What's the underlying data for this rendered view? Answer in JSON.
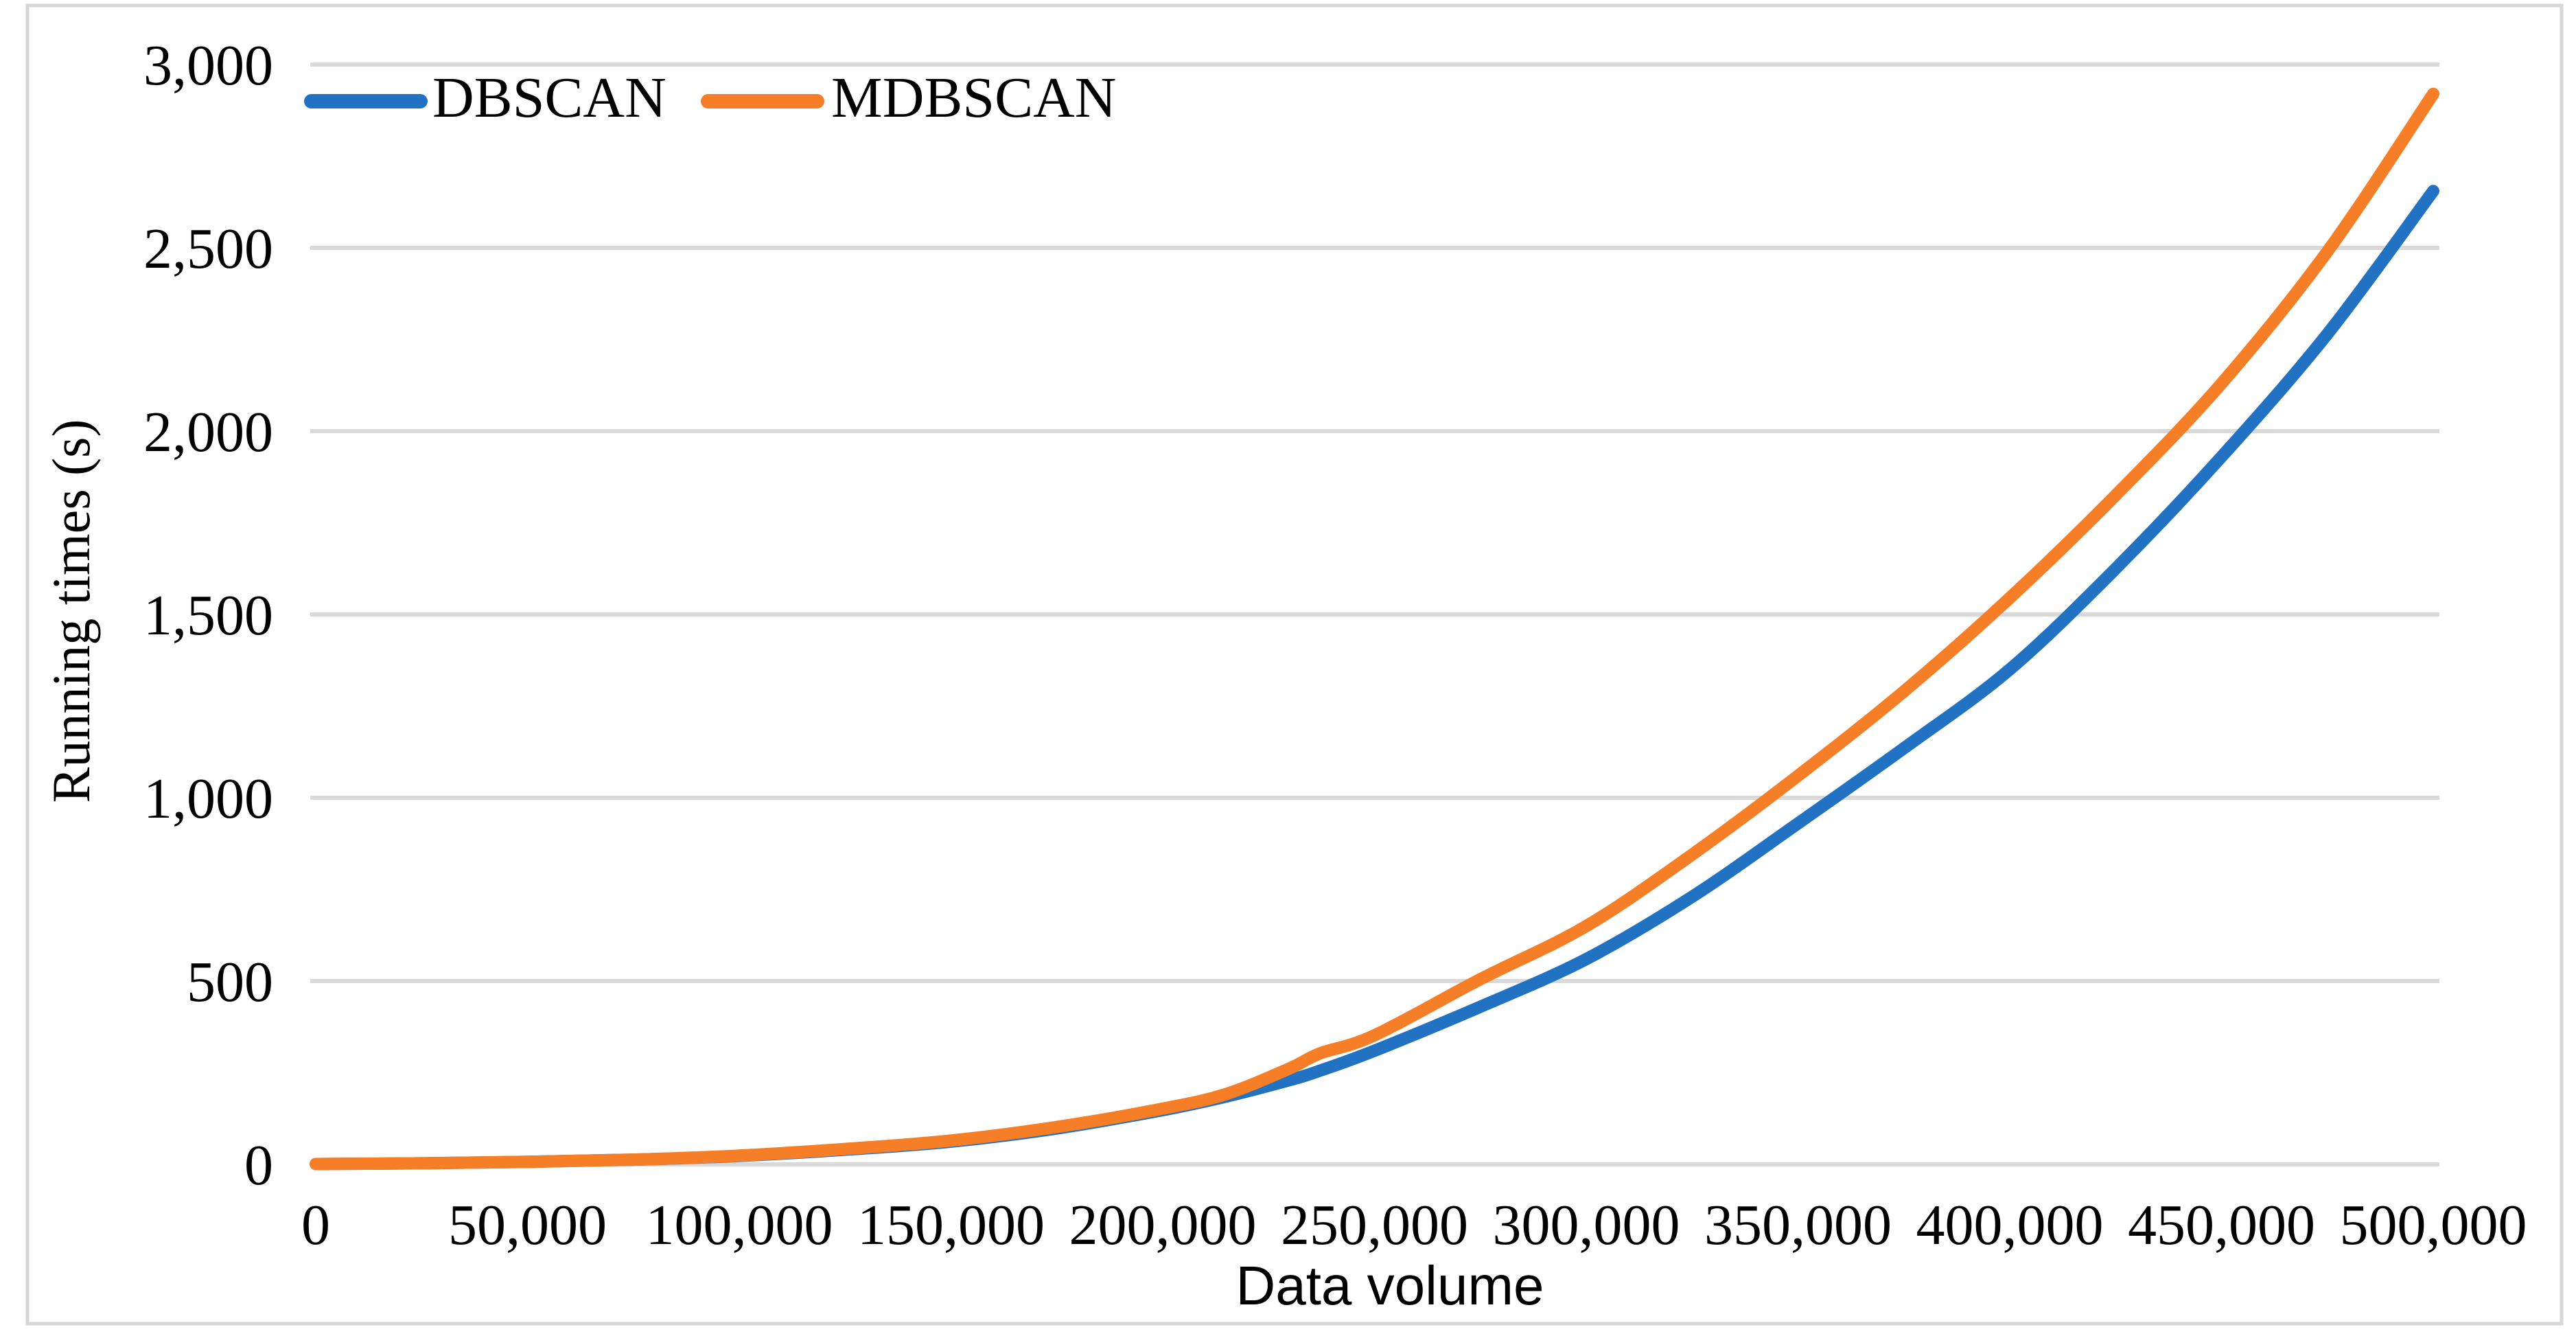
{
  "figure": {
    "background_color": "#FFFFFF",
    "border_color": "#D6D6D6",
    "gridline_color": "#D9D9D9",
    "text_color": "#000000"
  },
  "chart_data": {
    "type": "line",
    "title": "",
    "xlabel": "Data volume",
    "ylabel": "Running times (s)",
    "xlim": [
      0,
      500000
    ],
    "ylim": [
      0,
      3000
    ],
    "grid": "horizontal",
    "legend_position": "top-left-inside",
    "x_ticks": [
      0,
      50000,
      100000,
      150000,
      200000,
      250000,
      300000,
      350000,
      400000,
      450000,
      500000
    ],
    "x_tick_labels": [
      "0",
      "50,000",
      "100,000",
      "150,000",
      "200,000",
      "250,000",
      "300,000",
      "350,000",
      "400,000",
      "450,000",
      "500,000"
    ],
    "y_ticks": [
      0,
      500,
      1000,
      1500,
      2000,
      2500,
      3000
    ],
    "y_tick_labels": [
      "0",
      "500",
      "1,000",
      "1,500",
      "2,000",
      "2,500",
      "3,000"
    ],
    "x": [
      0,
      25000,
      50000,
      75000,
      100000,
      125000,
      150000,
      175000,
      200000,
      215000,
      230000,
      237000,
      250000,
      275000,
      300000,
      325000,
      350000,
      375000,
      400000,
      425000,
      450000,
      475000,
      500000
    ],
    "series": [
      {
        "name": "DBSCAN",
        "color": "#2272C3",
        "values": [
          1,
          3,
          7,
          13,
          23,
          40,
          62,
          98,
          148,
          185,
          230,
          255,
          310,
          430,
          560,
          730,
          930,
          1135,
          1350,
          1625,
          1930,
          2265,
          2655
        ]
      },
      {
        "name": "MDBSCAN",
        "color": "#F57E27",
        "values": [
          1,
          3,
          7,
          13,
          24,
          42,
          65,
          102,
          152,
          192,
          262,
          302,
          352,
          505,
          650,
          845,
          1060,
          1290,
          1545,
          1825,
          2130,
          2490,
          2920
        ]
      }
    ]
  }
}
